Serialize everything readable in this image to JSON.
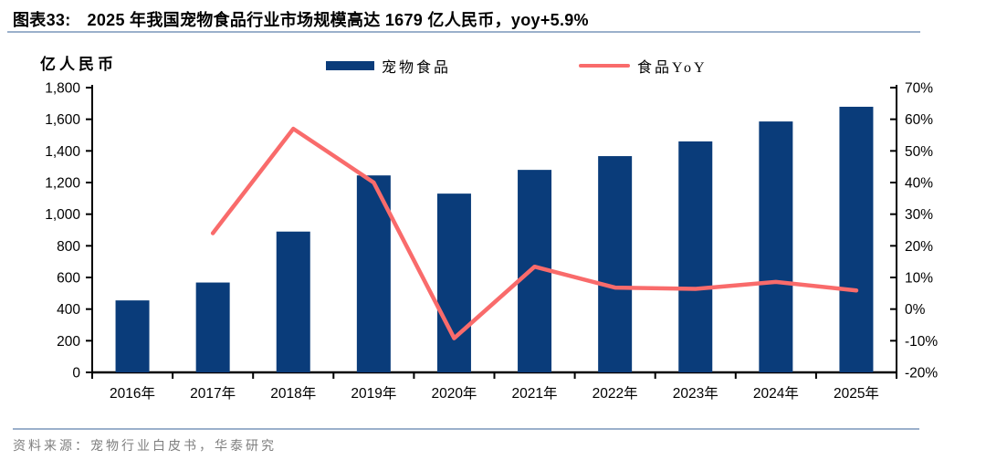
{
  "header": {
    "figure_label": "图表33:",
    "title": "2025 年我国宠物食品行业市场规模高达 1679 亿人民币，yoy+5.9%"
  },
  "legend": [
    {
      "label": "宠物食品",
      "type": "bar",
      "color": "#0a3c7a"
    },
    {
      "label": "食品YoY",
      "type": "line",
      "color": "#f96b6b"
    }
  ],
  "footer": {
    "source": "资料来源：宠物行业白皮书，华泰研究"
  },
  "colors": {
    "bar": "#0a3c7a",
    "line": "#f96b6b",
    "axis": "#000000",
    "rule": "#9bb0cb"
  },
  "chart_data": {
    "type": "bar",
    "title": "2025 年我国宠物食品行业市场规模高达 1679 亿人民币，yoy+5.9%",
    "categories": [
      "2016年",
      "2017年",
      "2018年",
      "2019年",
      "2020年",
      "2021年",
      "2022年",
      "2023年",
      "2024年",
      "2025年"
    ],
    "series": [
      {
        "name": "宠物食品",
        "type": "bar",
        "axis": "left",
        "color": "#0a3c7a",
        "values": [
          455,
          568,
          890,
          1245,
          1130,
          1280,
          1367,
          1460,
          1586,
          1679
        ]
      },
      {
        "name": "食品YoY",
        "type": "line",
        "axis": "right",
        "color": "#f96b6b",
        "values": [
          null,
          24,
          57,
          40,
          -9.2,
          13.4,
          6.8,
          6.4,
          8.6,
          5.9
        ]
      }
    ],
    "left_axis": {
      "title": "亿人民币",
      "min": 0,
      "max": 1800,
      "step": 200
    },
    "right_axis": {
      "title": "",
      "min": -20,
      "max": 70,
      "step": 10,
      "suffix": "%"
    },
    "grid": false,
    "legend_position": "top"
  }
}
